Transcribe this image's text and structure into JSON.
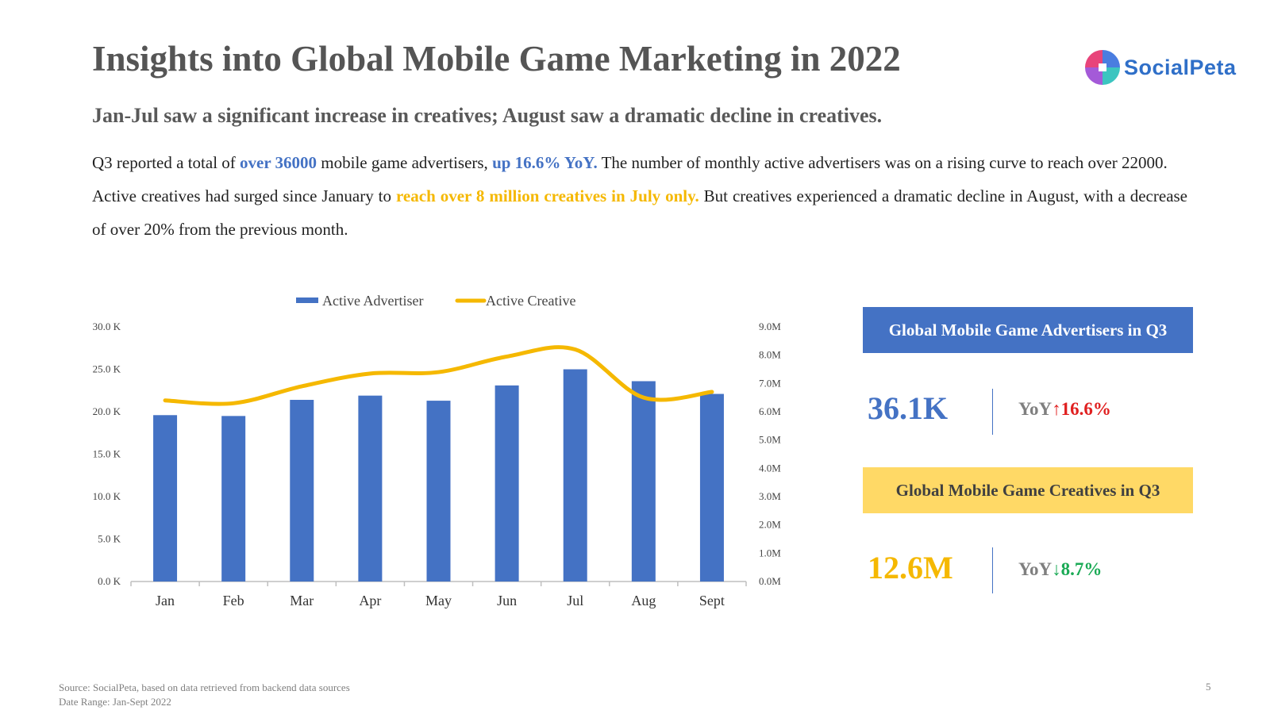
{
  "header": {
    "title": "Insights into Global Mobile Game Marketing in 2022",
    "logo_text": "SocialPeta"
  },
  "subtitle": "Jan-Jul saw a significant increase in creatives; August saw a dramatic decline in creatives.",
  "paragraphs": {
    "p1_a": "Q3 reported a total of ",
    "p1_hl1": "over 36000",
    "p1_b": " mobile game advertisers, ",
    "p1_hl2": "up 16.6% YoY.",
    "p1_c": " The number of monthly active advertisers was on a rising curve to reach over 22000.",
    "p2_a": "Active creatives had surged since January to ",
    "p2_hl": "reach over 8 million creatives in July only.",
    "p2_b": " But creatives experienced a dramatic decline in August, with a decrease of over 20% from the previous month."
  },
  "chart_data": {
    "type": "bar",
    "categories": [
      "Jan",
      "Feb",
      "Mar",
      "Apr",
      "May",
      "Jun",
      "Jul",
      "Aug",
      "Sept"
    ],
    "series": [
      {
        "name": "Active Advertiser",
        "type": "bar",
        "axis": "left",
        "unit": "K",
        "values": [
          19.6,
          19.5,
          21.4,
          21.9,
          21.3,
          23.1,
          25.0,
          23.6,
          22.1
        ],
        "color": "#4472c4"
      },
      {
        "name": "Active Creative",
        "type": "line",
        "axis": "right",
        "unit": "M",
        "values": [
          6.4,
          6.3,
          6.9,
          7.35,
          7.4,
          7.95,
          8.2,
          6.5,
          6.7
        ],
        "color": "#f5b800"
      }
    ],
    "left_axis": {
      "range": [
        0,
        30
      ],
      "ticks": [
        "0.0 K",
        "5.0 K",
        "10.0 K",
        "15.0 K",
        "20.0 K",
        "25.0 K",
        "30.0 K"
      ]
    },
    "right_axis": {
      "range": [
        0,
        9
      ],
      "ticks": [
        "0.0M",
        "1.0M",
        "2.0M",
        "3.0M",
        "4.0M",
        "5.0M",
        "6.0M",
        "7.0M",
        "8.0M",
        "9.0M"
      ]
    },
    "legend_position": "top",
    "grid": false
  },
  "kpis": {
    "advertisers": {
      "header": "Global Mobile Game Advertisers in Q3",
      "value": "36.1K",
      "yoy_label": "YoY",
      "yoy_value": "↑16.6%"
    },
    "creatives": {
      "header": "Global Mobile Game Creatives in Q3",
      "value": "12.6M",
      "yoy_label": "YoY",
      "yoy_value": "↓8.7%"
    }
  },
  "footer": {
    "source": "Source: SocialPeta, based on data retrieved from backend data sources",
    "date_range": "Date Range: Jan-Sept 2022",
    "page_number": "5"
  }
}
